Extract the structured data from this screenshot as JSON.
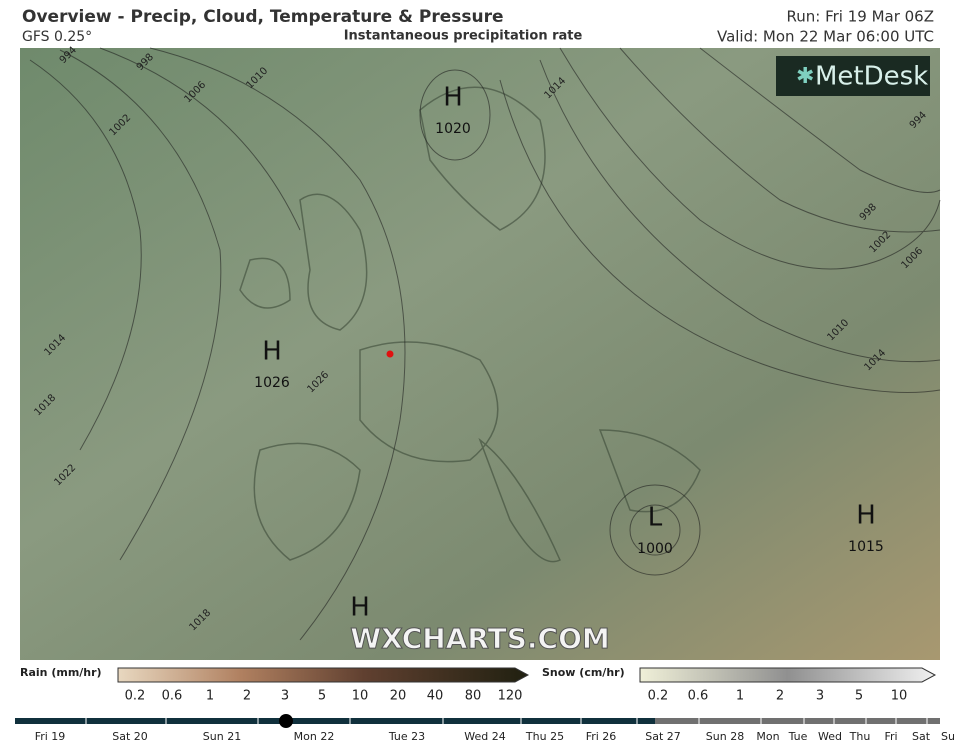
{
  "header": {
    "title": "Overview - Precip, Cloud, Temperature & Pressure",
    "model": "GFS 0.25°",
    "subtitle": "Instantaneous precipitation rate",
    "run": "Run: Fri 19 Mar 06Z",
    "valid": "Valid: Mon 22 Mar 06:00 UTC"
  },
  "logo": "MetDesk",
  "pressure_centers": [
    {
      "type": "H",
      "value": "1020"
    },
    {
      "type": "H",
      "value": "1026"
    },
    {
      "type": "L",
      "value": "1000"
    },
    {
      "type": "H",
      "value": "1015"
    },
    {
      "type": "H"
    }
  ],
  "isobar_labels": [
    "994",
    "998",
    "1006",
    "1010",
    "1002",
    "1014",
    "1018",
    "1022",
    "1018",
    "1014",
    "998",
    "1002",
    "1006",
    "1010",
    "1014",
    "994",
    "1026"
  ],
  "watermark": "WXCHARTS.COM",
  "legend": {
    "rain": {
      "title": "Rain (mm/hr)",
      "labels": [
        "0.2",
        "0.6",
        "1",
        "2",
        "3",
        "5",
        "10",
        "20",
        "40",
        "80",
        "120"
      ]
    },
    "snow": {
      "title": "Snow (cm/hr)",
      "labels": [
        "0.2",
        "0.6",
        "1",
        "2",
        "3",
        "5",
        "10"
      ]
    }
  },
  "timeline": {
    "days": [
      "Fri 19",
      "Sat 20",
      "Sun 21",
      "Mon 22",
      "Tue 23",
      "Wed 24",
      "Thu 25",
      "Fri 26",
      "Sat 27",
      "Sun 28",
      "Mon",
      "Tue",
      "Wed",
      "Thu",
      "Fri",
      "Sat",
      "Su"
    ]
  }
}
